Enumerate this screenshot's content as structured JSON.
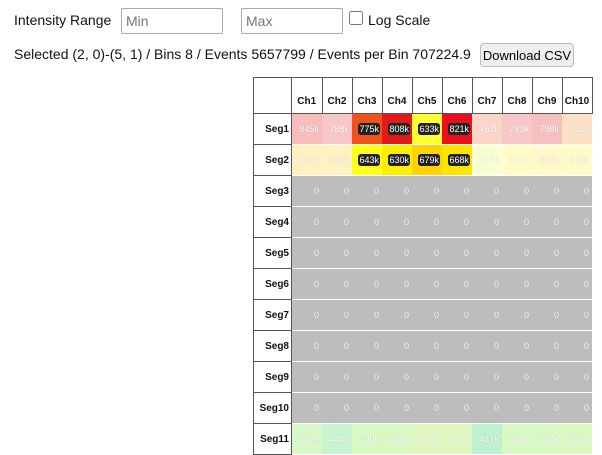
{
  "controls": {
    "range_label": "Intensity Range",
    "min_placeholder": "Min",
    "max_placeholder": "Max",
    "log_label": "Log Scale"
  },
  "status": {
    "text": "Selected (2, 0)-(5, 1) / Bins 8 / Events 5657799 / Events per Bin 707224.9",
    "button": "Download CSV"
  },
  "table": {
    "columns": [
      "Ch1",
      "Ch2",
      "Ch3",
      "Ch4",
      "Ch5",
      "Ch6",
      "Ch7",
      "Ch8",
      "Ch9",
      "Ch10"
    ],
    "zero_color": "#bdbdbd",
    "rows": [
      {
        "label": "Seg1",
        "cells": [
          {
            "text": "845k",
            "color": "#f7bcbc"
          },
          {
            "text": "788k",
            "color": "#f8c6c6"
          },
          {
            "text": "775k",
            "color": "#f0521c",
            "selected": true
          },
          {
            "text": "808k",
            "color": "#e31a1c",
            "selected": true
          },
          {
            "text": "633k",
            "color": "#ffff33",
            "selected": true
          },
          {
            "text": "821k",
            "color": "#e8101a",
            "selected": true
          },
          {
            "text": "762k",
            "color": "#fbd6c8"
          },
          {
            "text": "783k",
            "color": "#f8c8c8"
          },
          {
            "text": "798k",
            "color": "#f6c0c0"
          },
          {
            "text": "712k",
            "color": "#fde0c6"
          }
        ]
      },
      {
        "label": "Seg2",
        "cells": [
          {
            "text": "684k",
            "color": "#fff2c0"
          },
          {
            "text": "682k",
            "color": "#fff2c2"
          },
          {
            "text": "643k",
            "color": "#ffff1a",
            "selected": true
          },
          {
            "text": "630k",
            "color": "#ffee00",
            "selected": true
          },
          {
            "text": "679k",
            "color": "#ffd400",
            "selected": true
          },
          {
            "text": "668k",
            "color": "#ffe400",
            "selected": true
          },
          {
            "text": "617k",
            "color": "#f8ffd0"
          },
          {
            "text": "627k",
            "color": "#fffcc8"
          },
          {
            "text": "633k",
            "color": "#fff8c8"
          },
          {
            "text": "620k",
            "color": "#fffac8"
          }
        ]
      },
      {
        "label": "Seg3",
        "cells": [
          {
            "text": "0"
          },
          {
            "text": "0"
          },
          {
            "text": "0"
          },
          {
            "text": "0"
          },
          {
            "text": "0"
          },
          {
            "text": "0"
          },
          {
            "text": "0"
          },
          {
            "text": "0"
          },
          {
            "text": "0"
          },
          {
            "text": "0"
          }
        ]
      },
      {
        "label": "Seg4",
        "cells": [
          {
            "text": "0"
          },
          {
            "text": "0"
          },
          {
            "text": "0"
          },
          {
            "text": "0"
          },
          {
            "text": "0"
          },
          {
            "text": "0"
          },
          {
            "text": "0"
          },
          {
            "text": "0"
          },
          {
            "text": "0"
          },
          {
            "text": "0"
          }
        ]
      },
      {
        "label": "Seg5",
        "cells": [
          {
            "text": "0"
          },
          {
            "text": "0"
          },
          {
            "text": "0"
          },
          {
            "text": "0"
          },
          {
            "text": "0"
          },
          {
            "text": "0"
          },
          {
            "text": "0"
          },
          {
            "text": "0"
          },
          {
            "text": "0"
          },
          {
            "text": "0"
          }
        ]
      },
      {
        "label": "Seg6",
        "cells": [
          {
            "text": "0"
          },
          {
            "text": "0"
          },
          {
            "text": "0"
          },
          {
            "text": "0"
          },
          {
            "text": "0"
          },
          {
            "text": "0"
          },
          {
            "text": "0"
          },
          {
            "text": "0"
          },
          {
            "text": "0"
          },
          {
            "text": "0"
          }
        ]
      },
      {
        "label": "Seg7",
        "cells": [
          {
            "text": "0"
          },
          {
            "text": "0"
          },
          {
            "text": "0"
          },
          {
            "text": "0"
          },
          {
            "text": "0"
          },
          {
            "text": "0"
          },
          {
            "text": "0"
          },
          {
            "text": "0"
          },
          {
            "text": "0"
          },
          {
            "text": "0"
          }
        ]
      },
      {
        "label": "Seg8",
        "cells": [
          {
            "text": "0"
          },
          {
            "text": "0"
          },
          {
            "text": "0"
          },
          {
            "text": "0"
          },
          {
            "text": "0"
          },
          {
            "text": "0"
          },
          {
            "text": "0"
          },
          {
            "text": "0"
          },
          {
            "text": "0"
          },
          {
            "text": "0"
          }
        ]
      },
      {
        "label": "Seg9",
        "cells": [
          {
            "text": "0"
          },
          {
            "text": "0"
          },
          {
            "text": "0"
          },
          {
            "text": "0"
          },
          {
            "text": "0"
          },
          {
            "text": "0"
          },
          {
            "text": "0"
          },
          {
            "text": "0"
          },
          {
            "text": "0"
          },
          {
            "text": "0"
          }
        ]
      },
      {
        "label": "Seg10",
        "cells": [
          {
            "text": "0"
          },
          {
            "text": "0"
          },
          {
            "text": "0"
          },
          {
            "text": "0"
          },
          {
            "text": "0"
          },
          {
            "text": "0"
          },
          {
            "text": "0"
          },
          {
            "text": "0"
          },
          {
            "text": "0"
          },
          {
            "text": "0"
          }
        ]
      },
      {
        "label": "Seg11",
        "cells": [
          {
            "text": "478k",
            "color": "#d8f8c8"
          },
          {
            "text": "441k",
            "color": "#c8f4d0"
          },
          {
            "text": "485k",
            "color": "#d8f8c4"
          },
          {
            "text": "482k",
            "color": "#d8f8c4"
          },
          {
            "text": "502k",
            "color": "#e0f8c0"
          },
          {
            "text": "501k",
            "color": "#e0f8c0"
          },
          {
            "text": "417k",
            "color": "#bff0cf"
          },
          {
            "text": "488k",
            "color": "#d8f8c4"
          },
          {
            "text": "484k",
            "color": "#d8f8c4"
          },
          {
            "text": "494k",
            "color": "#dcf8c2"
          }
        ]
      }
    ]
  }
}
